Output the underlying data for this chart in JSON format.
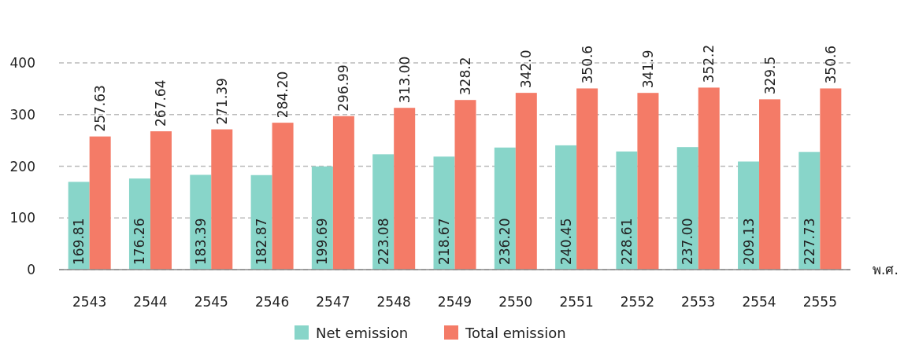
{
  "chart_data": {
    "type": "bar",
    "xlabel": "พ.ศ.",
    "categories": [
      "2543",
      "2544",
      "2545",
      "2546",
      "2547",
      "2548",
      "2549",
      "2550",
      "2551",
      "2552",
      "2553",
      "2554",
      "2555"
    ],
    "series": [
      {
        "name": "Net emission",
        "color": "#88d5c9",
        "values": [
          169.81,
          176.26,
          183.39,
          182.87,
          199.69,
          223.08,
          218.67,
          236.2,
          240.45,
          228.61,
          237.0,
          209.13,
          227.73
        ],
        "value_labels": [
          "169.81",
          "176.26",
          "183.39",
          "182.87",
          "199.69",
          "223.08",
          "218.67",
          "236.20",
          "240.45",
          "228.61",
          "237.00",
          "209.13",
          "227.73"
        ]
      },
      {
        "name": "Total emission",
        "color": "#f47b67",
        "values": [
          257.63,
          267.64,
          271.39,
          284.2,
          296.99,
          313.0,
          328.2,
          342.0,
          350.6,
          341.9,
          352.2,
          329.5,
          350.6
        ],
        "value_labels": [
          "257.63",
          "267.64",
          "271.39",
          "284.20",
          "296.99",
          "313.00",
          "328.2",
          "342.0",
          "350.6",
          "341.9",
          "352.2",
          "329.5",
          "350.6"
        ]
      }
    ],
    "ylim": [
      0,
      400
    ],
    "yticks": [
      0,
      100,
      200,
      300,
      400
    ],
    "grid": "y",
    "legend": "bottom"
  }
}
